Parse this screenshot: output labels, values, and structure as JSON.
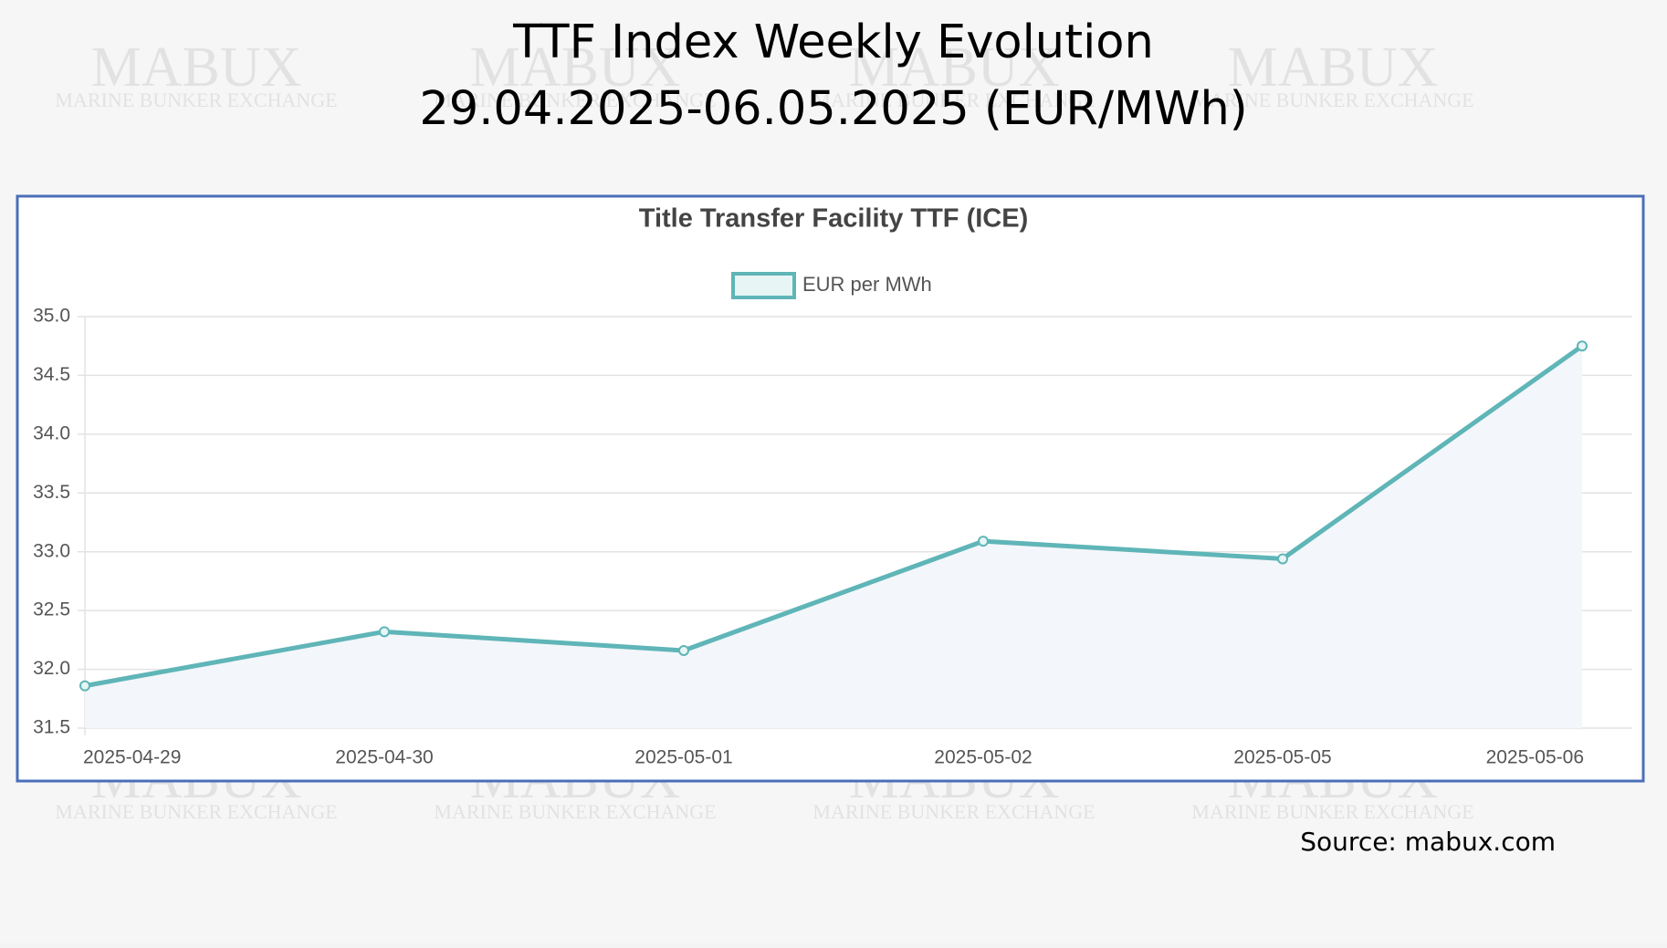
{
  "header": {
    "title": "TTF Index Weekly Evolution",
    "subtitle": "29.04.2025-06.05.2025 (EUR/MWh)"
  },
  "watermark": {
    "brand": "MABUX",
    "tagline": "MARINE BUNKER EXCHANGE"
  },
  "source": "Source: mabux.com",
  "chart_data": {
    "type": "line",
    "title": "Title Transfer Facility TTF (ICE)",
    "categories": [
      "2025-04-29",
      "2025-04-30",
      "2025-05-01",
      "2025-05-02",
      "2025-05-05",
      "2025-05-06"
    ],
    "series": [
      {
        "name": "EUR per MWh",
        "color": "#5fb5b7",
        "values": [
          31.86,
          32.32,
          32.16,
          33.09,
          32.94,
          34.75
        ]
      }
    ],
    "ylim": [
      31.5,
      35
    ],
    "yticks": [
      {
        "value": 31.5,
        "label": "31.5"
      },
      {
        "value": 32,
        "label": "32.0"
      },
      {
        "value": 32.5,
        "label": "32.5"
      },
      {
        "value": 33,
        "label": "33.0"
      },
      {
        "value": 33.5,
        "label": "33.5"
      },
      {
        "value": 34,
        "label": "34.0"
      },
      {
        "value": 34.5,
        "label": "34.5"
      },
      {
        "value": 35,
        "label": "35.0"
      }
    ],
    "grid": true,
    "legend": "top"
  }
}
